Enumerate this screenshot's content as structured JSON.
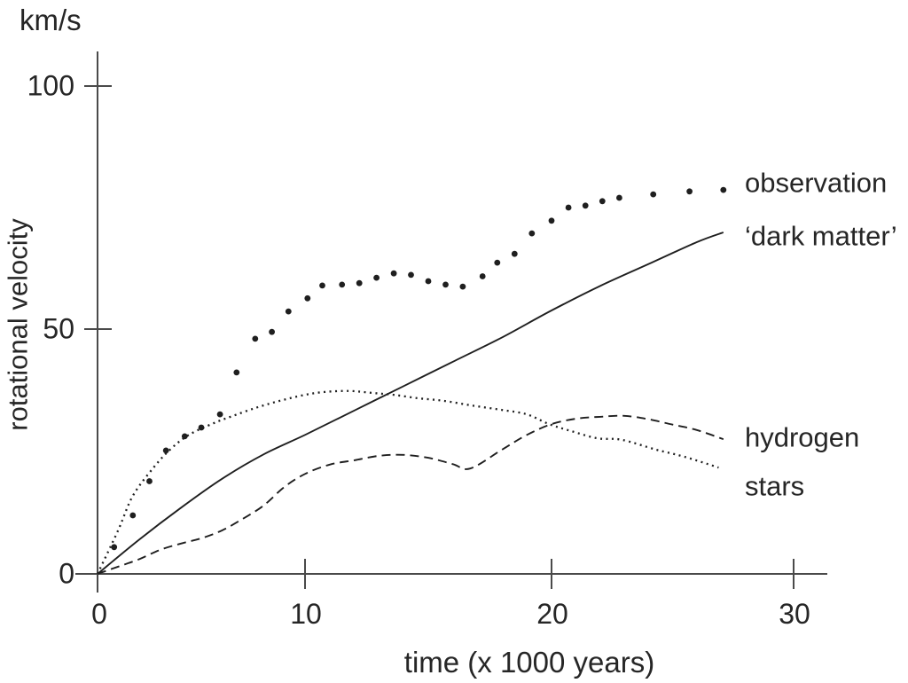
{
  "labels": {
    "y_unit": "km/s",
    "y_axis": "rotational velocity",
    "x_axis": "time (x 1000 years)",
    "x_ticks": [
      "0",
      "10",
      "20",
      "30"
    ],
    "y_ticks": [
      "100",
      "50",
      "0"
    ],
    "series": {
      "observation": "observation",
      "dark_matter": "‘dark matter’",
      "hydrogen": "hydrogen",
      "stars": "stars"
    }
  },
  "colors": {
    "ink": "#1f1f1f",
    "axis": "#4a4a4a",
    "text": "#262626",
    "background": "#ffffff"
  },
  "chart_data": {
    "type": "line",
    "title": "",
    "xlabel": "time (x 1000 years)",
    "ylabel": "rotational velocity",
    "y_unit": "km/s",
    "xlim": [
      0,
      32
    ],
    "ylim": [
      0,
      107
    ],
    "x_ticks": [
      0,
      10,
      20,
      30
    ],
    "y_ticks": [
      0,
      50,
      100
    ],
    "grid": false,
    "legend_position": "right-of-curve-annotations",
    "series": [
      {
        "name": "observation",
        "style": "scatter-dots",
        "points": [
          [
            0.8,
            5.5
          ],
          [
            1.7,
            12
          ],
          [
            2.5,
            19
          ],
          [
            3.3,
            25.3
          ],
          [
            4.2,
            28.2
          ],
          [
            5,
            30
          ],
          [
            5.9,
            32.7
          ],
          [
            6.7,
            41.3
          ],
          [
            7.6,
            48.2
          ],
          [
            8.4,
            49.6
          ],
          [
            9.2,
            53.8
          ],
          [
            10.1,
            56.5
          ],
          [
            10.7,
            59.1
          ],
          [
            11.5,
            59.3
          ],
          [
            12.2,
            59.6
          ],
          [
            12.9,
            60.7
          ],
          [
            13.6,
            61.6
          ],
          [
            14.3,
            61.3
          ],
          [
            15,
            60
          ],
          [
            15.7,
            59.3
          ],
          [
            16.4,
            58.9
          ],
          [
            17.2,
            61
          ],
          [
            17.8,
            63.8
          ],
          [
            18.5,
            65.6
          ],
          [
            19.2,
            69.8
          ],
          [
            20,
            72.4
          ],
          [
            20.7,
            75.1
          ],
          [
            21.4,
            75.5
          ],
          [
            22.1,
            76.4
          ],
          [
            22.8,
            77.1
          ],
          [
            24.2,
            77.8
          ],
          [
            25.7,
            78.4
          ],
          [
            27.1,
            78.7
          ]
        ]
      },
      {
        "name": "dark_matter",
        "style": "solid",
        "points": [
          [
            0,
            0
          ],
          [
            2,
            7
          ],
          [
            4,
            13.5
          ],
          [
            6,
            19.5
          ],
          [
            8,
            24.5
          ],
          [
            10,
            28.5
          ],
          [
            12,
            33.5
          ],
          [
            14,
            38.5
          ],
          [
            16,
            43.5
          ],
          [
            18,
            48.5
          ],
          [
            20,
            54
          ],
          [
            22,
            59
          ],
          [
            24,
            63.5
          ],
          [
            26,
            68
          ],
          [
            27.1,
            70
          ]
        ]
      },
      {
        "name": "hydrogen",
        "style": "dashed",
        "points": [
          [
            0,
            0
          ],
          [
            1,
            1.5
          ],
          [
            2,
            3
          ],
          [
            3,
            4.9
          ],
          [
            4,
            6.2
          ],
          [
            5,
            7.3
          ],
          [
            6,
            8.9
          ],
          [
            7,
            11.3
          ],
          [
            8,
            14
          ],
          [
            9,
            17.8
          ],
          [
            10,
            20.5
          ],
          [
            11,
            22.4
          ],
          [
            12,
            23.3
          ],
          [
            13,
            24.2
          ],
          [
            14,
            24.4
          ],
          [
            15,
            23.8
          ],
          [
            16,
            22.5
          ],
          [
            16.7,
            21.6
          ],
          [
            18,
            25.5
          ],
          [
            19,
            28.5
          ],
          [
            20,
            30.7
          ],
          [
            21,
            31.8
          ],
          [
            22,
            32.2
          ],
          [
            23,
            32.4
          ],
          [
            24,
            31.7
          ],
          [
            25,
            30.6
          ],
          [
            26,
            29.5
          ],
          [
            27.1,
            27.6
          ]
        ]
      },
      {
        "name": "stars",
        "style": "dotted",
        "points": [
          [
            0,
            0
          ],
          [
            1,
            9
          ],
          [
            1.7,
            16
          ],
          [
            2.7,
            21.8
          ],
          [
            3.5,
            25.5
          ],
          [
            4.4,
            28.5
          ],
          [
            5.6,
            30.9
          ],
          [
            6.4,
            32.2
          ],
          [
            7.6,
            34
          ],
          [
            8.8,
            35.5
          ],
          [
            10,
            36.7
          ],
          [
            10.8,
            37.3
          ],
          [
            11.8,
            37.5
          ],
          [
            12.7,
            37.1
          ],
          [
            13.6,
            36.7
          ],
          [
            14.6,
            36
          ],
          [
            15.6,
            35.5
          ],
          [
            16.8,
            34.5
          ],
          [
            18,
            33.6
          ],
          [
            19,
            32.7
          ],
          [
            19.9,
            30.7
          ],
          [
            20.8,
            29.3
          ],
          [
            21.9,
            27.8
          ],
          [
            22.9,
            27.5
          ],
          [
            24.3,
            25.5
          ],
          [
            25.5,
            24
          ],
          [
            26.9,
            21.8
          ]
        ]
      }
    ]
  }
}
